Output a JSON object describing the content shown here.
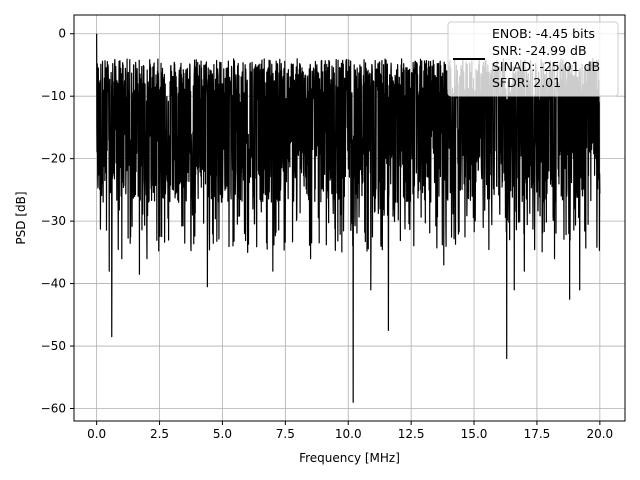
{
  "chart_data": {
    "type": "line",
    "title": "",
    "xlabel": "Frequency [MHz]",
    "ylabel": "PSD [dB]",
    "xlim": [
      -0.9,
      21.0
    ],
    "ylim": [
      -62,
      3
    ],
    "xticks": [
      0.0,
      2.5,
      5.0,
      7.5,
      10.0,
      12.5,
      15.0,
      17.5,
      20.0
    ],
    "xtick_labels": [
      "0.0",
      "2.5",
      "5.0",
      "7.5",
      "10.0",
      "12.5",
      "15.0",
      "17.5",
      "20.0"
    ],
    "yticks": [
      0,
      -10,
      -20,
      -30,
      -40,
      -50,
      -60
    ],
    "ytick_labels": [
      "0",
      "−10",
      "−20",
      "−30",
      "−40",
      "−50",
      "−60"
    ],
    "grid": true,
    "legend": {
      "placement": "top-right",
      "entries": [
        "ENOB: -4.45 bits",
        "SNR: -24.99 dB",
        "SINAD: -25.01 dB",
        "SFDR: 2.01"
      ]
    },
    "series": [
      {
        "color": "#000000",
        "x_range": [
          0.0,
          20.0
        ],
        "typical_upper_dB": -8,
        "typical_lower_dB": -23,
        "peak_dB": 0,
        "peak_x": 0.0,
        "notable_dips": [
          {
            "x": 0.6,
            "y": -48.5
          },
          {
            "x": 0.5,
            "y": -38
          },
          {
            "x": 1.0,
            "y": -36
          },
          {
            "x": 1.7,
            "y": -38.5
          },
          {
            "x": 2.0,
            "y": -36
          },
          {
            "x": 4.4,
            "y": -40.5
          },
          {
            "x": 6.0,
            "y": -35
          },
          {
            "x": 7.0,
            "y": -38
          },
          {
            "x": 8.5,
            "y": -36
          },
          {
            "x": 10.2,
            "y": -59
          },
          {
            "x": 10.9,
            "y": -41
          },
          {
            "x": 11.6,
            "y": -47.5
          },
          {
            "x": 13.8,
            "y": -37
          },
          {
            "x": 16.3,
            "y": -52
          },
          {
            "x": 16.6,
            "y": -41
          },
          {
            "x": 17.0,
            "y": -38
          },
          {
            "x": 18.2,
            "y": -36
          },
          {
            "x": 18.8,
            "y": -42.5
          },
          {
            "x": 19.2,
            "y": -41
          }
        ]
      }
    ]
  }
}
